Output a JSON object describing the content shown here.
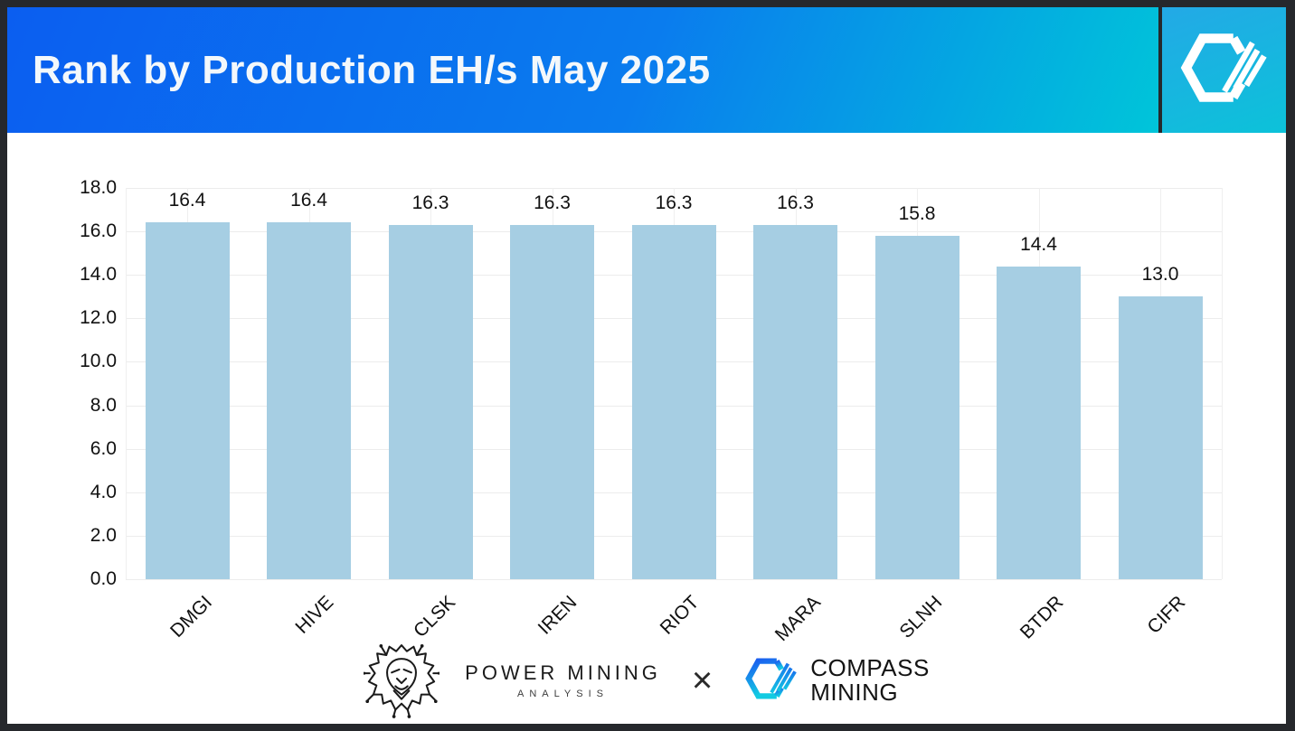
{
  "header": {
    "title": "Rank by Production EH/s May 2025"
  },
  "chart_data": {
    "type": "bar",
    "title": "Rank by Production EH/s May 2025",
    "categories": [
      "DMGI",
      "HIVE",
      "CLSK",
      "IREN",
      "RIOT",
      "MARA",
      "SLNH",
      "BTDR",
      "CIFR"
    ],
    "values": [
      16.4,
      16.4,
      16.3,
      16.3,
      16.3,
      16.3,
      15.8,
      14.4,
      13.0
    ],
    "value_labels": [
      "16.4",
      "16.4",
      "16.3",
      "16.3",
      "16.3",
      "16.3",
      "15.8",
      "14.4",
      "13.0"
    ],
    "xlabel": "",
    "ylabel": "",
    "ylim": [
      0,
      18
    ],
    "ytick_step": 2,
    "yticks": [
      "0.0",
      "2.0",
      "4.0",
      "6.0",
      "8.0",
      "10.0",
      "12.0",
      "14.0",
      "16.0",
      "18.0"
    ],
    "grid": true,
    "legend": false,
    "bar_color": "#a6cee3",
    "units": "EH/s"
  },
  "footer": {
    "power_mining_line1": "POWER MINING",
    "power_mining_line2": "ANALYSIS",
    "separator": "×",
    "compass_line1": "COMPASS",
    "compass_line2": "MINING"
  },
  "icons": {
    "header_logo": "compass-mining-hexagon-logo",
    "footer_lion": "power-mining-lion-logo",
    "footer_compass": "compass-mining-hexagon-logo"
  },
  "colors": {
    "header_gradient_start": "#0b5ef0",
    "header_gradient_end": "#00c5d9",
    "bar_fill": "#a6cee3",
    "gridline": "#ececec",
    "frame_border": "#26282c",
    "text": "#111111",
    "title_text": "#f4f8fb"
  }
}
